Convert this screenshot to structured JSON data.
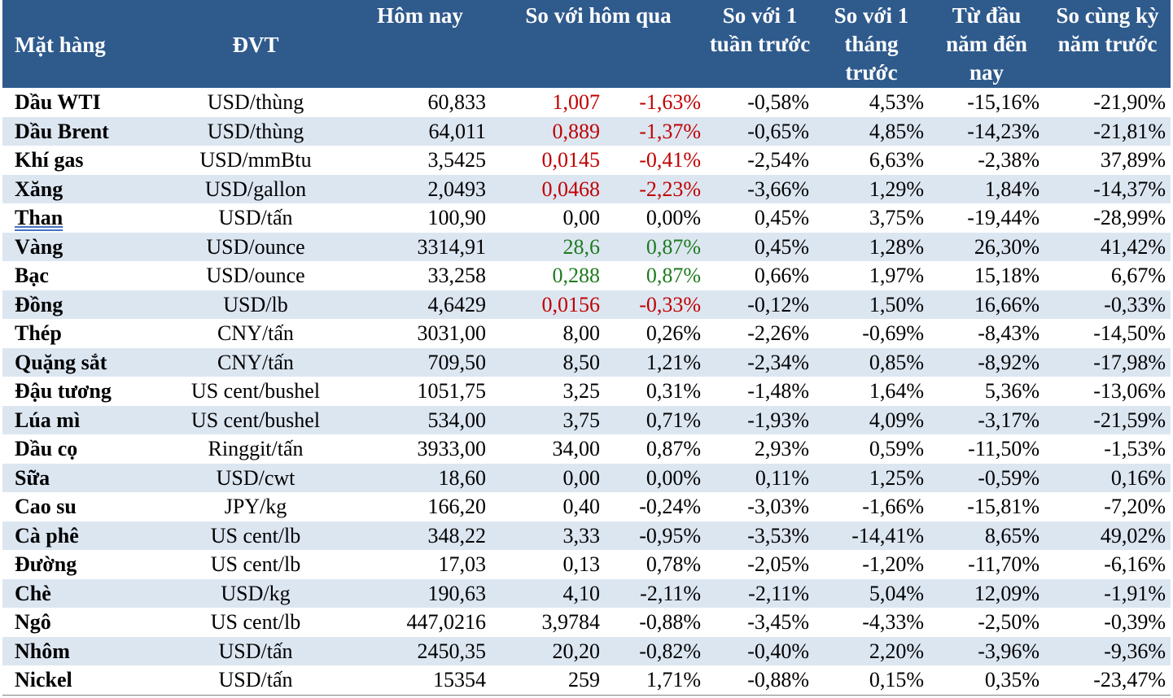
{
  "headers": {
    "item": "Mặt hàng",
    "unit": "ĐVT",
    "today": "Hôm nay",
    "vs_yesterday": "So với hôm qua",
    "vs_week": "So với 1 tuần trước",
    "vs_month": "So với 1 tháng trước",
    "ytd": "Từ đầu năm đến nay",
    "yoy": "So cùng kỳ năm trước"
  },
  "colors": {
    "header_bg": "#2F5A8C",
    "band_bg": "#DCE6F1",
    "down": "#C00000",
    "up": "#1E7B1E"
  },
  "rows": [
    {
      "name": "Dầu WTI",
      "unit": "USD/thùng",
      "today": "60,833",
      "chg": "1,007",
      "pct": "-1,63%",
      "week": "-0,58%",
      "month": "4,53%",
      "ytd": "-15,16%",
      "yoy": "-21,90%",
      "color": "red"
    },
    {
      "name": "Dầu Brent",
      "unit": "USD/thùng",
      "today": "64,011",
      "chg": "0,889",
      "pct": "-1,37%",
      "week": "-0,65%",
      "month": "4,85%",
      "ytd": "-14,23%",
      "yoy": "-21,81%",
      "color": "red"
    },
    {
      "name": "Khí gas",
      "unit": "USD/mmBtu",
      "today": "3,5425",
      "chg": "0,0145",
      "pct": "-0,41%",
      "week": "-2,54%",
      "month": "6,63%",
      "ytd": "-2,38%",
      "yoy": "37,89%",
      "color": "red"
    },
    {
      "name": "Xăng",
      "unit": "USD/gallon",
      "today": "2,0493",
      "chg": "0,0468",
      "pct": "-2,23%",
      "week": "-3,66%",
      "month": "1,29%",
      "ytd": "1,84%",
      "yoy": "-14,37%",
      "color": "red"
    },
    {
      "name": "Than",
      "unit": "USD/tấn",
      "today": "100,90",
      "chg": "0,00",
      "pct": "0,00%",
      "week": "0,45%",
      "month": "3,75%",
      "ytd": "-19,44%",
      "yoy": "-28,99%",
      "color": "black",
      "underline": true
    },
    {
      "name": "Vàng",
      "unit": "USD/ounce",
      "today": "3314,91",
      "chg": "28,6",
      "pct": "0,87%",
      "week": "0,45%",
      "month": "1,28%",
      "ytd": "26,30%",
      "yoy": "41,42%",
      "color": "green"
    },
    {
      "name": "Bạc",
      "unit": "USD/ounce",
      "today": "33,258",
      "chg": "0,288",
      "pct": "0,87%",
      "week": "0,66%",
      "month": "1,97%",
      "ytd": "15,18%",
      "yoy": "6,67%",
      "color": "green"
    },
    {
      "name": "Đồng",
      "unit": "USD/lb",
      "today": "4,6429",
      "chg": "0,0156",
      "pct": "-0,33%",
      "week": "-0,12%",
      "month": "1,50%",
      "ytd": "16,66%",
      "yoy": "-0,33%",
      "color": "red"
    },
    {
      "name": "Thép",
      "unit": "CNY/tấn",
      "today": "3031,00",
      "chg": "8,00",
      "pct": "0,26%",
      "week": "-2,26%",
      "month": "-0,69%",
      "ytd": "-8,43%",
      "yoy": "-14,50%",
      "color": "black"
    },
    {
      "name": "Quặng sắt",
      "unit": "CNY/tấn",
      "today": "709,50",
      "chg": "8,50",
      "pct": "1,21%",
      "week": "-2,34%",
      "month": "0,85%",
      "ytd": "-8,92%",
      "yoy": "-17,98%",
      "color": "black"
    },
    {
      "name": "Đậu tương",
      "unit": "US cent/bushel",
      "today": "1051,75",
      "chg": "3,25",
      "pct": "0,31%",
      "week": "-1,48%",
      "month": "1,64%",
      "ytd": "5,36%",
      "yoy": "-13,06%",
      "color": "black"
    },
    {
      "name": "Lúa mì",
      "unit": "US cent/bushel",
      "today": "534,00",
      "chg": "3,75",
      "pct": "0,71%",
      "week": "-1,93%",
      "month": "4,09%",
      "ytd": "-3,17%",
      "yoy": "-21,59%",
      "color": "black"
    },
    {
      "name": "Dầu cọ",
      "unit": "Ringgit/tấn",
      "today": "3933,00",
      "chg": "34,00",
      "pct": "0,87%",
      "week": "2,93%",
      "month": "0,59%",
      "ytd": "-11,50%",
      "yoy": "-1,53%",
      "color": "black"
    },
    {
      "name": "Sữa",
      "unit": "USD/cwt",
      "today": "18,60",
      "chg": "0,00",
      "pct": "0,00%",
      "week": "0,11%",
      "month": "1,25%",
      "ytd": "-0,59%",
      "yoy": "0,16%",
      "color": "black"
    },
    {
      "name": "Cao su",
      "unit": "JPY/kg",
      "today": "166,20",
      "chg": "0,40",
      "pct": "-0,24%",
      "week": "-3,03%",
      "month": "-1,66%",
      "ytd": "-15,81%",
      "yoy": "-7,20%",
      "color": "black"
    },
    {
      "name": "Cà phê",
      "unit": "US cent/lb",
      "today": "348,22",
      "chg": "3,33",
      "pct": "-0,95%",
      "week": "-3,53%",
      "month": "-14,41%",
      "ytd": "8,65%",
      "yoy": "49,02%",
      "color": "black"
    },
    {
      "name": "Đường",
      "unit": "US cent/lb",
      "today": "17,03",
      "chg": "0,13",
      "pct": "0,78%",
      "week": "-2,05%",
      "month": "-1,20%",
      "ytd": "-11,70%",
      "yoy": "-6,16%",
      "color": "black"
    },
    {
      "name": "Chè",
      "unit": "USD/kg",
      "today": "190,63",
      "chg": "4,10",
      "pct": "-2,11%",
      "week": "-2,11%",
      "month": "5,04%",
      "ytd": "12,09%",
      "yoy": "-1,91%",
      "color": "black"
    },
    {
      "name": "Ngô",
      "unit": "US cent/lb",
      "today": "447,0216",
      "chg": "3,9784",
      "pct": "-0,88%",
      "week": "-3,45%",
      "month": "-4,33%",
      "ytd": "-2,50%",
      "yoy": "-0,39%",
      "color": "black"
    },
    {
      "name": "Nhôm",
      "unit": "USD/tấn",
      "today": "2450,35",
      "chg": "20,20",
      "pct": "-0,82%",
      "week": "-0,40%",
      "month": "2,20%",
      "ytd": "-3,96%",
      "yoy": "-9,36%",
      "color": "black"
    },
    {
      "name": "Nickel",
      "unit": "USD/tấn",
      "today": "15354",
      "chg": "259",
      "pct": "1,71%",
      "week": "-0,88%",
      "month": "0,15%",
      "ytd": "0,35%",
      "yoy": "-23,47%",
      "color": "black"
    }
  ]
}
